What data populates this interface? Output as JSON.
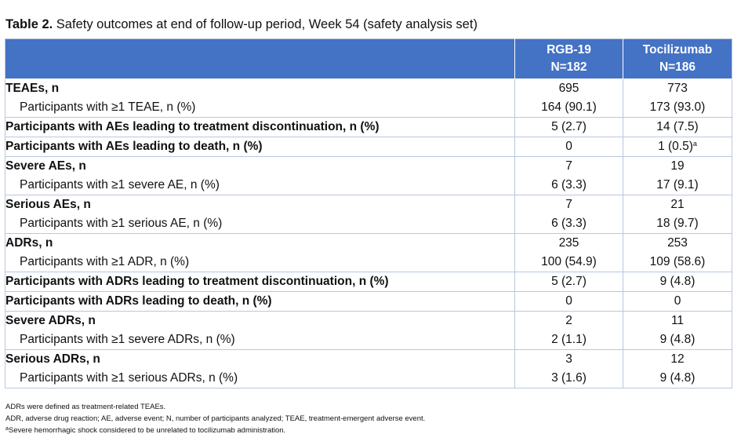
{
  "caption": {
    "label": "Table 2.",
    "text": " Safety outcomes at end of follow-up period, Week 54 (safety analysis set)"
  },
  "header": {
    "col1_name": "RGB-19",
    "col1_n": "N=182",
    "col2_name": "Tocilizumab",
    "col2_n": "N=186"
  },
  "rows": [
    {
      "label": "TEAEs, n",
      "rgb": "695",
      "toc": "773"
    },
    {
      "label": "Participants with ≥1 TEAE, n (%)",
      "rgb": "164 (90.1)",
      "toc": "173 (93.0)"
    },
    {
      "label": "Participants with AEs leading to treatment discontinuation, n (%)",
      "rgb": "5 (2.7)",
      "toc": "14 (7.5)"
    },
    {
      "label": "Participants with AEs leading to death, n (%)",
      "rgb": "0",
      "toc": "1 (0.5)",
      "toc_sup": "a"
    },
    {
      "label": "Severe AEs, n",
      "rgb": "7",
      "toc": "19"
    },
    {
      "label": "Participants with ≥1 severe AE, n (%)",
      "rgb": "6 (3.3)",
      "toc": "17 (9.1)"
    },
    {
      "label": "Serious AEs, n",
      "rgb": "7",
      "toc": "21"
    },
    {
      "label": "Participants with ≥1 serious AE, n (%)",
      "rgb": "6 (3.3)",
      "toc": "18 (9.7)"
    },
    {
      "label": "ADRs, n",
      "rgb": "235",
      "toc": "253"
    },
    {
      "label": "Participants with ≥1 ADR, n (%)",
      "rgb": "100 (54.9)",
      "toc": "109 (58.6)"
    },
    {
      "label": "Participants with ADRs leading to treatment discontinuation, n (%)",
      "rgb": "5 (2.7)",
      "toc": "9 (4.8)"
    },
    {
      "label": "Participants with ADRs leading to death, n (%)",
      "rgb": "0",
      "toc": "0"
    },
    {
      "label": "Severe ADRs, n",
      "rgb": "2",
      "toc": "11"
    },
    {
      "label": "Participants with ≥1 severe ADRs, n (%)",
      "rgb": "2 (1.1)",
      "toc": "9 (4.8)"
    },
    {
      "label": "Serious ADRs, n",
      "rgb": "3",
      "toc": "12"
    },
    {
      "label": "Participants with ≥1 serious ADRs, n (%)",
      "rgb": "3 (1.6)",
      "toc": "9 (4.8)"
    }
  ],
  "footnotes": {
    "line1": "ADRs were defined as treatment-related TEAEs.",
    "line2": "ADR, adverse drug reaction; AE, adverse event; N, number of participants analyzed; TEAE, treatment-emergent adverse event.",
    "line3_sup": "a",
    "line3": "Severe hemorrhagic shock considered to be unrelated to tocilizumab administration."
  },
  "colors": {
    "header_bg": "#4472c4",
    "header_text": "#ffffff",
    "grid": "#b9c7e0"
  }
}
